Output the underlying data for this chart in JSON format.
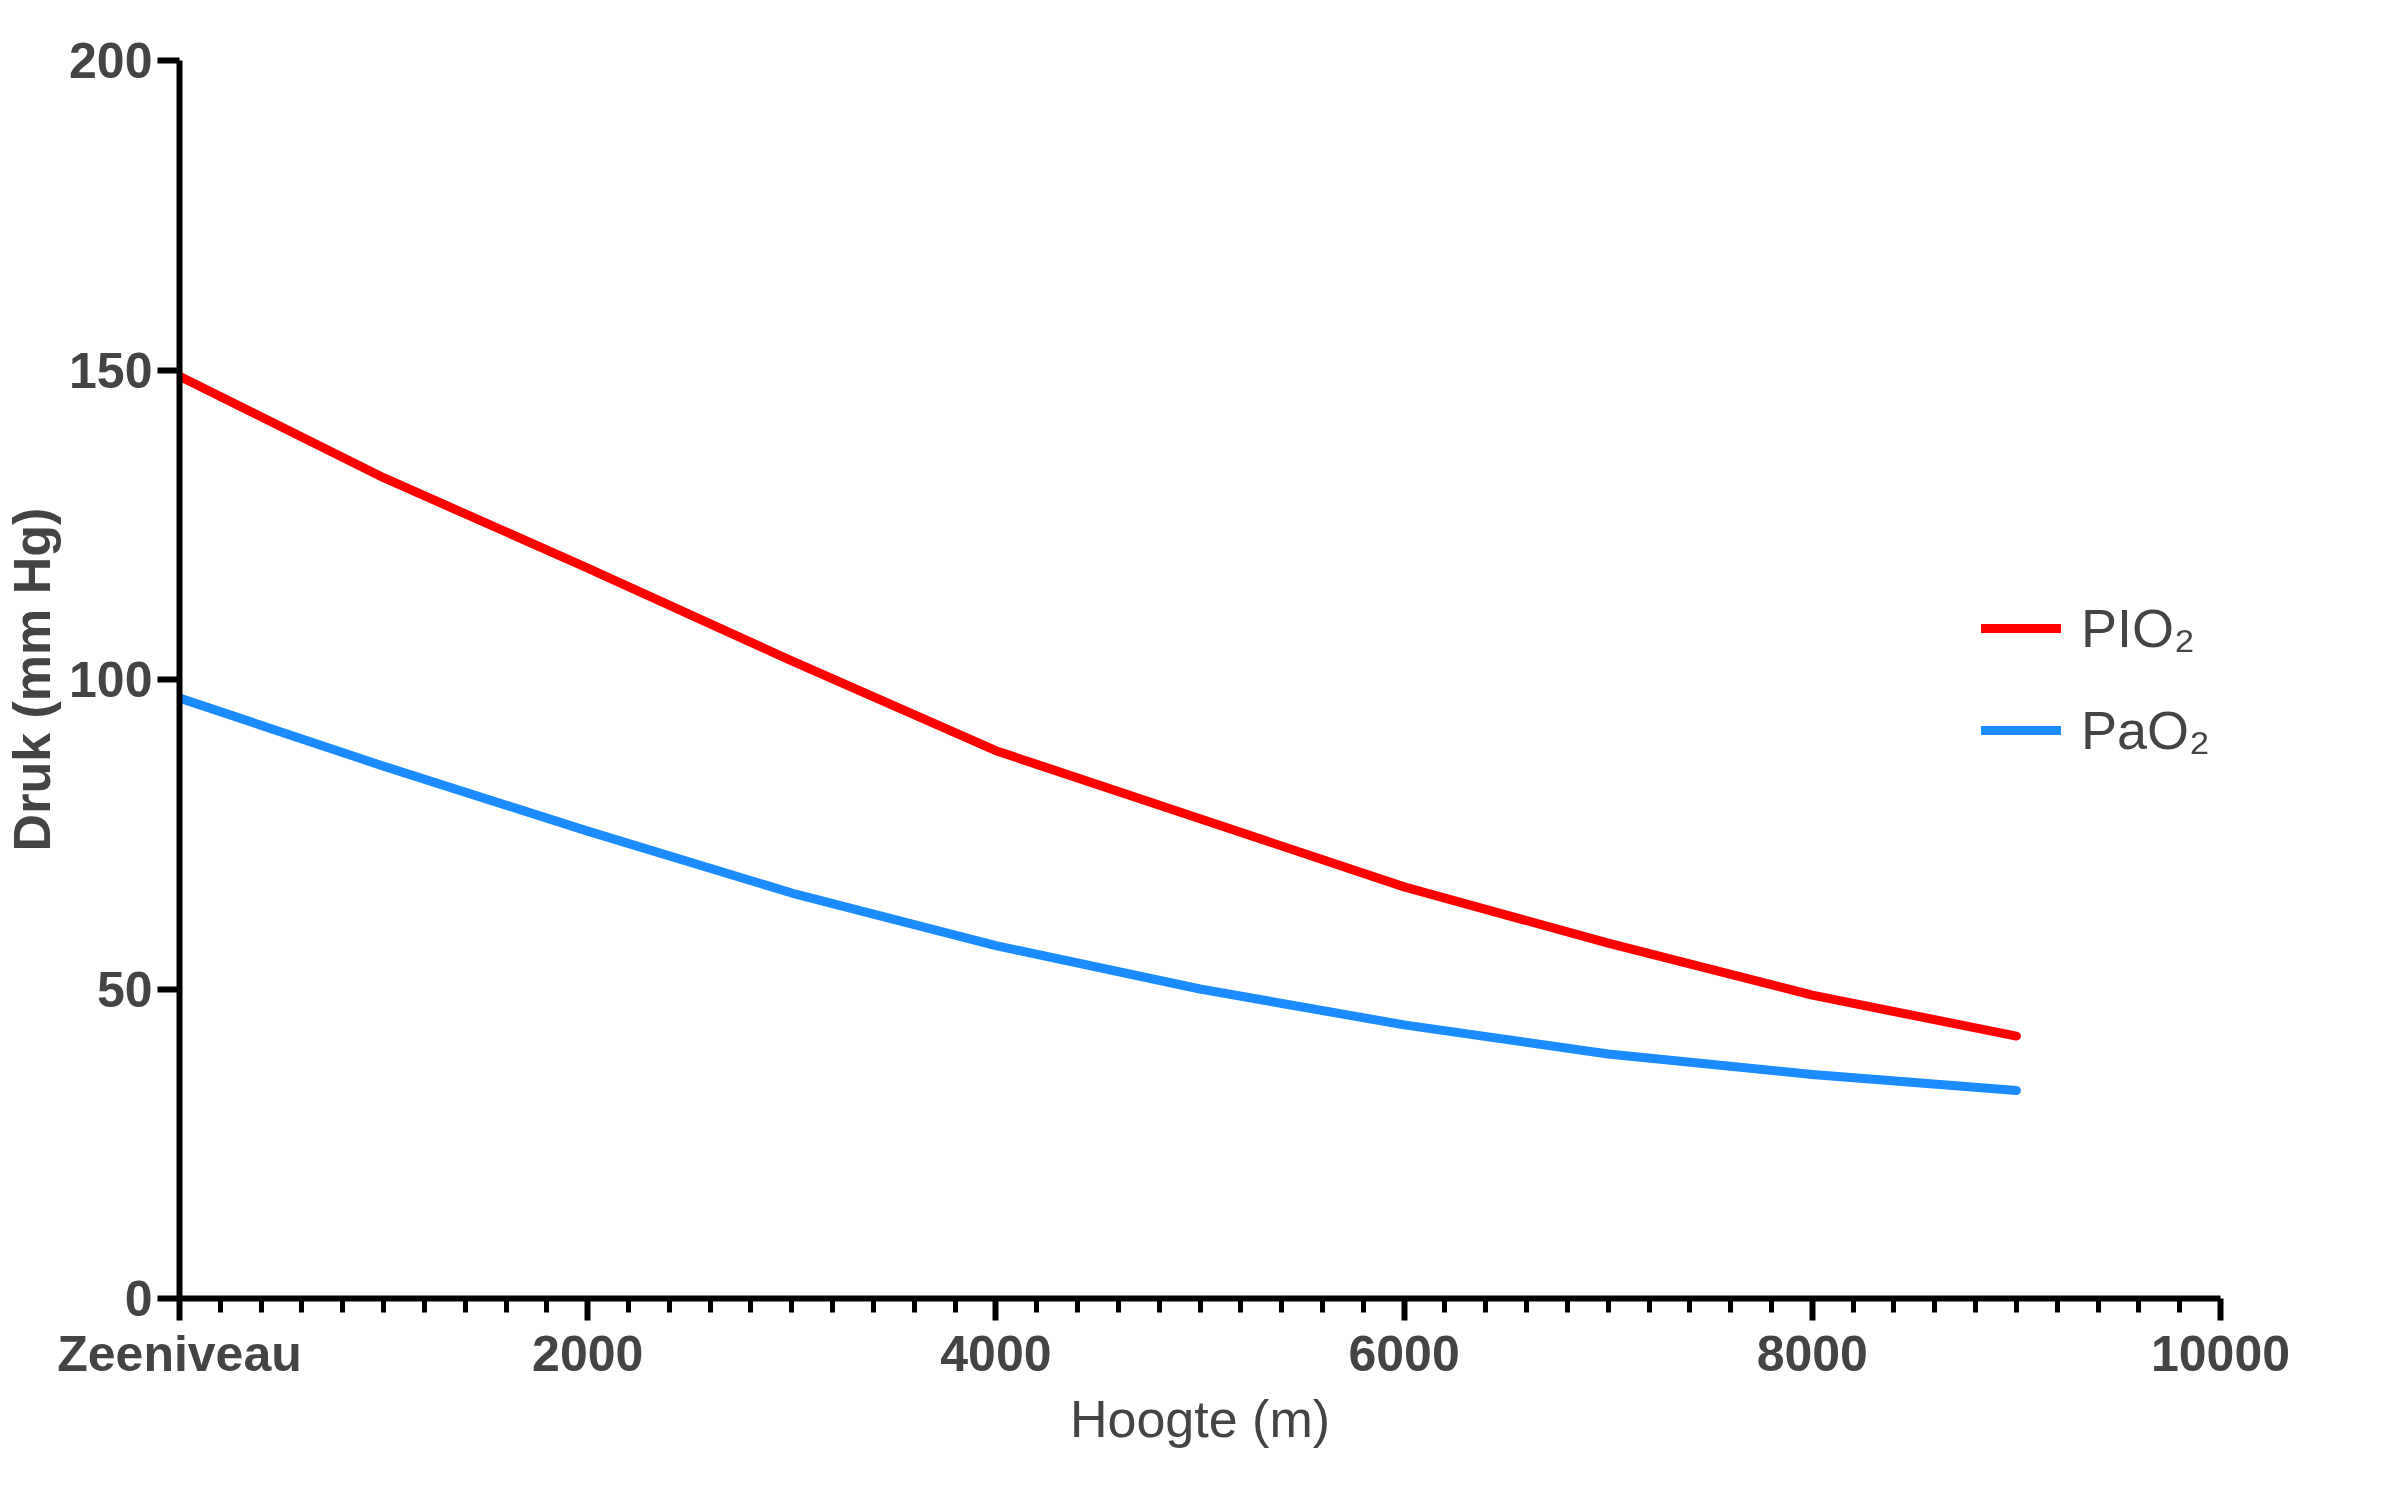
{
  "chart_data": {
    "type": "line",
    "xlabel": "Hoogte (m)",
    "ylabel": "Druk (mm Hg)",
    "xlim": [
      0,
      10000
    ],
    "ylim": [
      0,
      200
    ],
    "xticks": [
      {
        "value": 0,
        "label": "Zeeniveau"
      },
      {
        "value": 200,
        "label": null
      },
      {
        "value": 400,
        "label": null
      },
      {
        "value": 600,
        "label": null
      },
      {
        "value": 800,
        "label": null
      },
      {
        "value": 1000,
        "label": null
      },
      {
        "value": 1200,
        "label": null
      },
      {
        "value": 1400,
        "label": null
      },
      {
        "value": 1600,
        "label": null
      },
      {
        "value": 1800,
        "label": null
      },
      2000,
      {
        "value": 2200,
        "label": null
      },
      {
        "value": 2400,
        "label": null
      },
      {
        "value": 2600,
        "label": null
      },
      {
        "value": 2800,
        "label": null
      },
      {
        "value": 3000,
        "label": null
      },
      {
        "value": 3200,
        "label": null
      },
      {
        "value": 3400,
        "label": null
      },
      {
        "value": 3600,
        "label": null
      },
      {
        "value": 3800,
        "label": null
      },
      4000,
      {
        "value": 4200,
        "label": null
      },
      {
        "value": 4400,
        "label": null
      },
      {
        "value": 4600,
        "label": null
      },
      {
        "value": 4800,
        "label": null
      },
      {
        "value": 5000,
        "label": null
      },
      {
        "value": 5200,
        "label": null
      },
      {
        "value": 5400,
        "label": null
      },
      {
        "value": 5600,
        "label": null
      },
      {
        "value": 5800,
        "label": null
      },
      6000,
      {
        "value": 6200,
        "label": null
      },
      {
        "value": 6400,
        "label": null
      },
      {
        "value": 6600,
        "label": null
      },
      {
        "value": 6800,
        "label": null
      },
      {
        "value": 7000,
        "label": null
      },
      {
        "value": 7200,
        "label": null
      },
      {
        "value": 7400,
        "label": null
      },
      {
        "value": 7600,
        "label": null
      },
      {
        "value": 7800,
        "label": null
      },
      8000,
      {
        "value": 8200,
        "label": null
      },
      {
        "value": 8400,
        "label": null
      },
      {
        "value": 8600,
        "label": null
      },
      {
        "value": 8800,
        "label": null
      },
      {
        "value": 9000,
        "label": null
      },
      {
        "value": 9200,
        "label": null
      },
      {
        "value": 9400,
        "label": null
      },
      {
        "value": 9600,
        "label": null
      },
      {
        "value": 9800,
        "label": null
      },
      10000
    ],
    "yticks": [
      0,
      50,
      100,
      150,
      200
    ],
    "x": [
      0,
      1000,
      2000,
      3000,
      4000,
      5000,
      6000,
      7000,
      8000,
      9000
    ],
    "series": [
      {
        "name": "PIO₂",
        "color": "#ff0000",
        "values": [
          149,
          132.6,
          118,
          103,
          88.5,
          77.5,
          66.5,
          57.4,
          49,
          42.4
        ]
      },
      {
        "name": "PaO₂",
        "color": "#1a8cff",
        "values": [
          97,
          86,
          75.5,
          65.5,
          57,
          50,
          44.2,
          39.5,
          36.2,
          33.6
        ]
      }
    ],
    "legend": "right",
    "grid": false,
    "line_style": "solid",
    "marker": "none"
  }
}
